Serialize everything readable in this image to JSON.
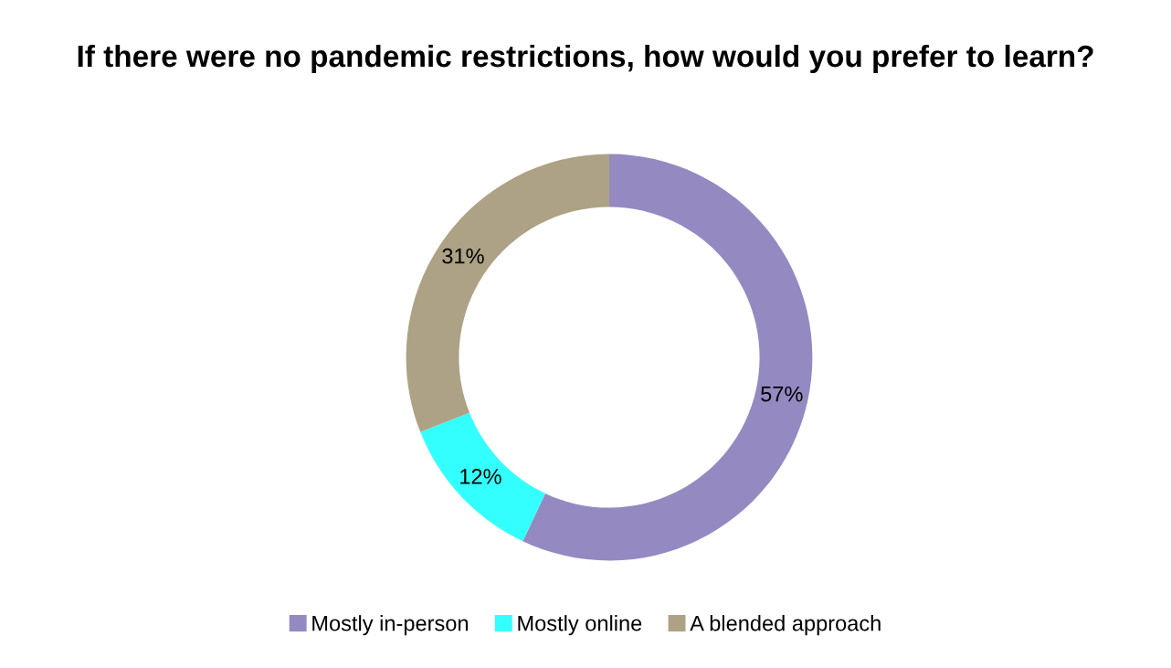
{
  "chart_data": {
    "type": "donut",
    "title": "If there were no pandemic restrictions, how would you prefer to learn?",
    "categories": [
      "Mostly in-person",
      "Mostly online",
      "A blended approach"
    ],
    "values": [
      57,
      12,
      31
    ],
    "colors": [
      "#9589c2",
      "#33ffff",
      "#ada285"
    ],
    "value_labels": [
      "57%",
      "12%",
      "31%"
    ],
    "legend": "bottom"
  }
}
